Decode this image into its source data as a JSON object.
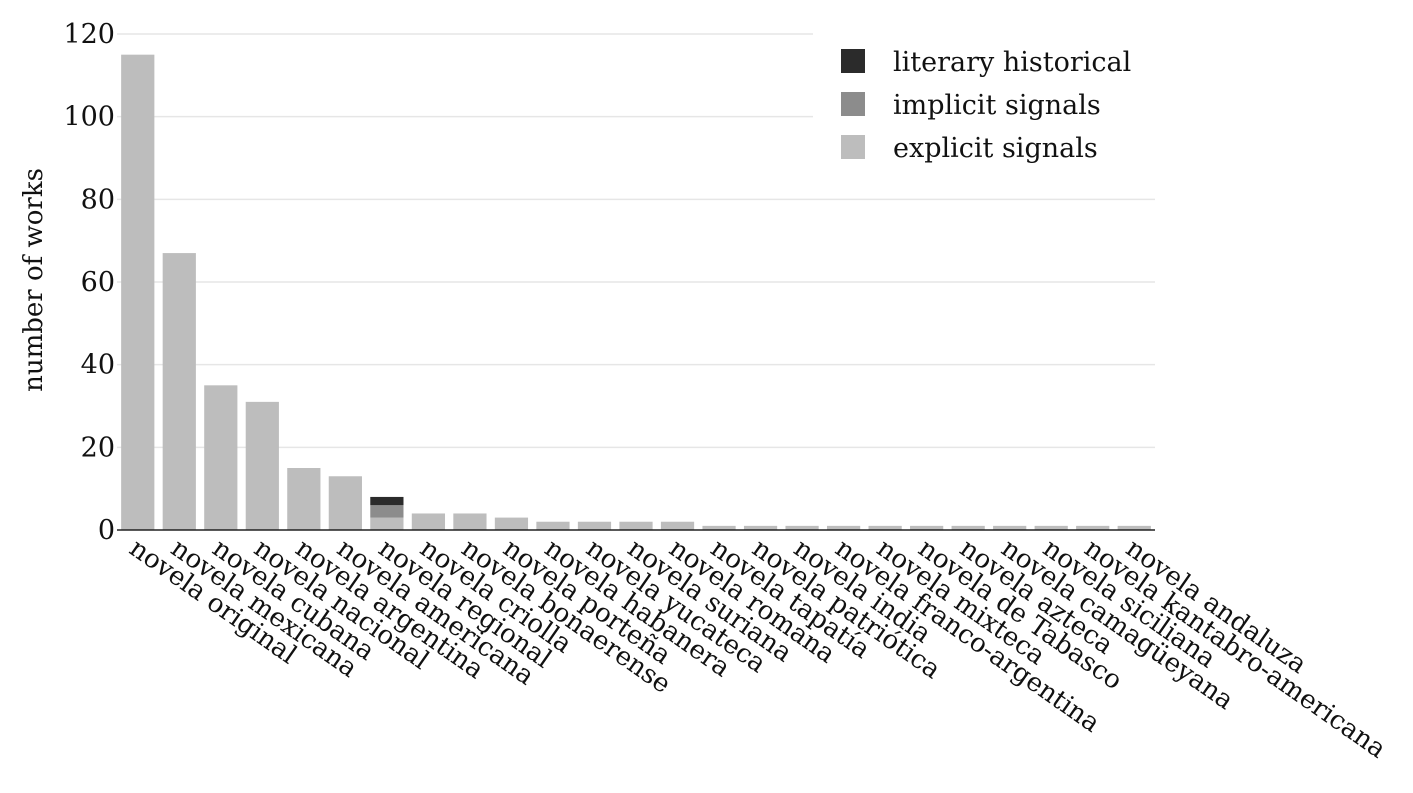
{
  "chart_data": {
    "type": "bar",
    "stacked": true,
    "title": "",
    "xlabel": "",
    "ylabel": "number of works",
    "ylim": [
      0,
      120
    ],
    "yticks": [
      0,
      20,
      40,
      60,
      80,
      100,
      120
    ],
    "grid": "horizontal",
    "legend_position": "top-right",
    "categories": [
      "novela original",
      "novela mexicana",
      "novela cubana",
      "novela nacional",
      "novela argentina",
      "novela americana",
      "novela regional",
      "novela criolla",
      "novela bonaerense",
      "novela porteña",
      "novela habanera",
      "novela yucateca",
      "novela suriana",
      "novela romana",
      "novela tapatía",
      "novela patriótica",
      "novela india",
      "novela franco-argentina",
      "novela mixteca",
      "novela de Tabasco",
      "novela azteca",
      "novela camagüeyana",
      "novela siciliana",
      "novela kantabro-americana",
      "novela andaluza"
    ],
    "series": [
      {
        "name": "explicit signals",
        "color": "#bdbdbd",
        "values": [
          115,
          67,
          35,
          31,
          15,
          13,
          3,
          4,
          4,
          3,
          2,
          2,
          2,
          2,
          1,
          1,
          1,
          1,
          1,
          1,
          1,
          1,
          1,
          1,
          1
        ]
      },
      {
        "name": "implicit signals",
        "color": "#8c8c8c",
        "values": [
          0,
          0,
          0,
          0,
          0,
          0,
          3,
          0,
          0,
          0,
          0,
          0,
          0,
          0,
          0,
          0,
          0,
          0,
          0,
          0,
          0,
          0,
          0,
          0,
          0
        ]
      },
      {
        "name": "literary historical",
        "color": "#2b2b2b",
        "values": [
          0,
          0,
          0,
          0,
          0,
          0,
          2,
          0,
          0,
          0,
          0,
          0,
          0,
          0,
          0,
          0,
          0,
          0,
          0,
          0,
          0,
          0,
          0,
          0,
          0
        ]
      }
    ],
    "legend_order": [
      "literary historical",
      "implicit signals",
      "explicit signals"
    ]
  }
}
